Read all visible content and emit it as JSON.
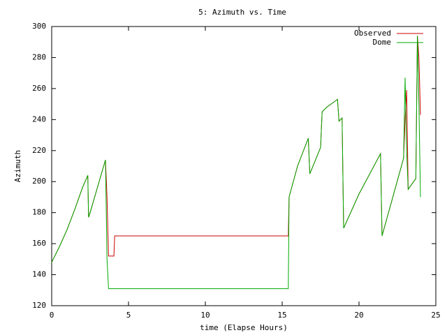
{
  "chart_data": {
    "type": "line",
    "title": "5: Azimuth vs. Time",
    "x_label": "time (Elapse Hours)",
    "y_label": "Azimuth",
    "x": [
      0,
      0.5,
      1,
      1.5,
      2,
      2.35,
      2.4,
      2.5,
      3,
      3.5,
      3.6,
      3.7,
      4.05,
      4.1,
      15.4,
      15.45,
      16,
      16.7,
      16.8,
      17.5,
      17.6,
      17.9,
      18.6,
      18.7,
      18.9,
      19.0,
      20,
      21.4,
      21.5,
      22.9,
      23.0,
      23.1,
      23.2,
      23.7,
      23.8,
      23.9,
      24.0
    ],
    "series": [
      {
        "name": "Observed",
        "color": "#cc0000",
        "values": [
          148,
          158,
          169,
          182,
          196,
          204,
          177,
          180,
          197,
          214,
          190,
          152,
          152,
          165,
          165,
          190,
          210,
          228,
          205,
          222,
          245,
          248,
          253,
          239,
          241,
          170,
          192,
          218,
          165,
          215,
          240,
          259,
          195,
          202,
          294,
          280,
          243
        ]
      },
      {
        "name": "Dome",
        "color": "#00aa00",
        "values": [
          148,
          158,
          169,
          182,
          196,
          204,
          177,
          180,
          197,
          214,
          150,
          131,
          131,
          131,
          131,
          190,
          210,
          228,
          205,
          222,
          245,
          248,
          253,
          239,
          241,
          170,
          192,
          218,
          165,
          215,
          267,
          220,
          195,
          202,
          294,
          250,
          190
        ]
      }
    ],
    "xlim": [
      0,
      25
    ],
    "xticks": [
      0,
      5,
      10,
      15,
      20,
      25
    ],
    "ylim": [
      120,
      300
    ],
    "yticks": [
      120,
      140,
      160,
      180,
      200,
      220,
      240,
      260,
      280,
      300
    ],
    "legend": "top-right",
    "grid": false
  }
}
